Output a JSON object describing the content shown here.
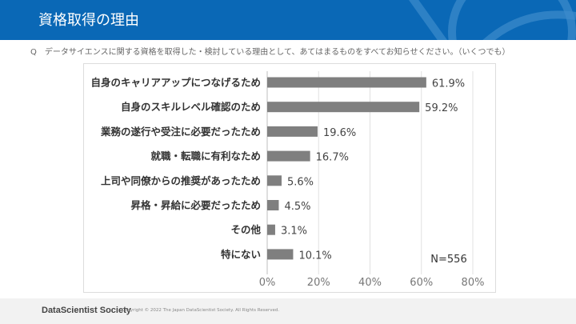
{
  "header": {
    "title": "資格取得の理由"
  },
  "question": "Q　データサイエンスに関する資格を取得した・検討している理由として、あてはまるものをすべてお知らせください。（いくつでも）",
  "footer": {
    "brand": "DataScientist Society",
    "copyright": "Copyright © 2022 The Japan DataScientist Society. All Rights Reserved."
  },
  "colors": {
    "header": "#0a68b6",
    "bar": "#7f7f7f"
  },
  "chart_data": {
    "type": "bar",
    "orientation": "horizontal",
    "categories": [
      "自身のキャリアアップにつなげるため",
      "自身のスキルレベル確認のため",
      "業務の遂行や受注に必要だったため",
      "就職・転職に有利なため",
      "上司や同僚からの推奨があったため",
      "昇格・昇給に必要だったため",
      "その他",
      "特にない"
    ],
    "values": [
      61.9,
      59.2,
      19.6,
      16.7,
      5.6,
      4.5,
      3.1,
      10.1
    ],
    "data_labels": [
      "61.9%",
      "59.2%",
      "19.6%",
      "16.7%",
      "5.6%",
      "4.5%",
      "3.1%",
      "10.1%"
    ],
    "xlim": [
      0,
      80
    ],
    "xticks": [
      "0%",
      "20%",
      "40%",
      "60%",
      "80%"
    ],
    "grid": true,
    "annotation": "N=556"
  }
}
